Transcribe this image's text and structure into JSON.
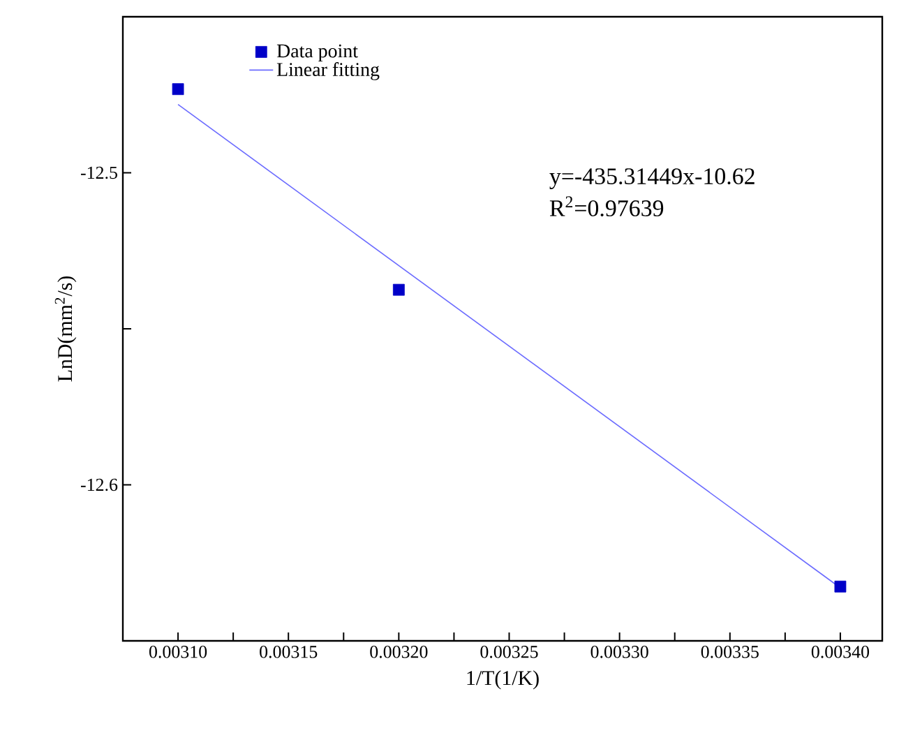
{
  "chart_data": {
    "type": "scatter",
    "xlabel": "1/T(1/K)",
    "ylabel": "LnD(mm$^{2}$/s)",
    "xlim": [
      0.003075,
      0.003419
    ],
    "ylim": [
      -12.65,
      -12.45
    ],
    "xticks": [
      {
        "value": 0.0031,
        "label": "0.00310"
      },
      {
        "value": 0.00315,
        "label": "0.00315"
      },
      {
        "value": 0.0032,
        "label": "0.00320"
      },
      {
        "value": 0.00325,
        "label": "0.00325"
      },
      {
        "value": 0.0033,
        "label": "0.00330"
      },
      {
        "value": 0.00335,
        "label": "0.00335"
      },
      {
        "value": 0.0034,
        "label": "0.00340"
      },
      {
        "value": 0.003125,
        "label": null
      },
      {
        "value": 0.003175,
        "label": null
      },
      {
        "value": 0.003225,
        "label": null
      },
      {
        "value": 0.003275,
        "label": null
      },
      {
        "value": 0.003325,
        "label": null
      },
      {
        "value": 0.003375,
        "label": null
      }
    ],
    "yticks": [
      -12.5,
      -12.6,
      {
        "value": -12.55,
        "label": null
      }
    ],
    "x": [
      0.0031,
      0.0032,
      0.0034
    ],
    "series": [
      {
        "name": "Data point",
        "color": "#0000c8",
        "marker": "square",
        "values": [
          -12.4732,
          -12.5375,
          -12.6326
        ]
      },
      {
        "name": "Linear fitting",
        "type": "line",
        "color": "#6b6bff",
        "marker": "none",
        "line_style": "solid",
        "x": [
          0.0031,
          0.0034
        ],
        "values": [
          -12.4781,
          -12.633
        ]
      }
    ],
    "annotations": [
      "y=-435.31449x-10.62",
      "R$^{2}$=0.97639"
    ],
    "legend": "top left",
    "grid": false
  }
}
